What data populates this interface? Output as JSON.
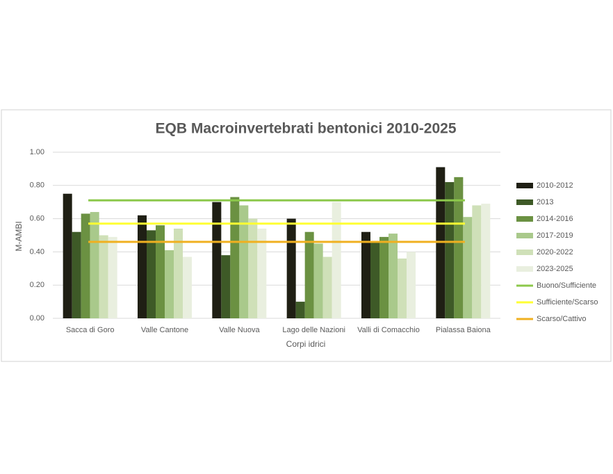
{
  "chart_data": {
    "type": "bar",
    "title": "EQB Macroinvertebrati bentonici 2010-2025",
    "x_label": "Corpi idrici",
    "y_label": "M-AMBI",
    "categories": [
      "Sacca di Goro",
      "Valle Cantone",
      "Valle Nuova",
      "Lago delle Nazioni",
      "Valli di Comacchio",
      "Pialassa Baiona"
    ],
    "ylim": [
      0,
      1
    ],
    "yticks": [
      {
        "value": 0,
        "label": "0.00"
      },
      {
        "value": 0.2,
        "label": "0.20"
      },
      {
        "value": 0.4,
        "label": "0.40"
      },
      {
        "value": 0.6,
        "label": "0.60"
      },
      {
        "value": 0.8,
        "label": "0.80"
      },
      {
        "value": 1,
        "label": "1.00"
      }
    ],
    "grid": true,
    "legend": "right",
    "series": [
      {
        "name": "2010-2012",
        "color": "#1f1f14",
        "mark": "bar",
        "values": [
          0.75,
          0.62,
          0.7,
          0.6,
          0.52,
          0.91
        ]
      },
      {
        "name": "2013",
        "color": "#3e5a27",
        "mark": "bar",
        "values": [
          0.52,
          0.53,
          0.38,
          0.1,
          0.46,
          0.82
        ]
      },
      {
        "name": "2014-2016",
        "color": "#6b9142",
        "mark": "bar",
        "values": [
          0.63,
          0.56,
          0.73,
          0.52,
          0.49,
          0.85
        ]
      },
      {
        "name": "2017-2019",
        "color": "#a9c98b",
        "mark": "bar",
        "values": [
          0.64,
          0.41,
          0.68,
          0.45,
          0.51,
          0.61
        ]
      },
      {
        "name": "2020-2022",
        "color": "#cfe0b8",
        "mark": "bar",
        "values": [
          0.5,
          0.54,
          0.6,
          0.37,
          0.36,
          0.68
        ]
      },
      {
        "name": "2023-2025",
        "color": "#e9efdf",
        "mark": "bar",
        "values": [
          0.49,
          0.37,
          0.54,
          0.7,
          0.4,
          0.69
        ]
      },
      {
        "name": "Buono/Sufficiente",
        "color": "#8cc84b",
        "mark": "line",
        "values": [
          0.71,
          0.71,
          0.71,
          0.71,
          0.71,
          0.71
        ]
      },
      {
        "name": "Sufficiente/Scarso",
        "color": "#ffff33",
        "mark": "line",
        "values": [
          0.57,
          0.57,
          0.57,
          0.57,
          0.57,
          0.57
        ]
      },
      {
        "name": "Scarso/Cattivo",
        "color": "#f0b020",
        "mark": "line",
        "values": [
          0.46,
          0.46,
          0.46,
          0.46,
          0.46,
          0.46
        ]
      }
    ]
  }
}
